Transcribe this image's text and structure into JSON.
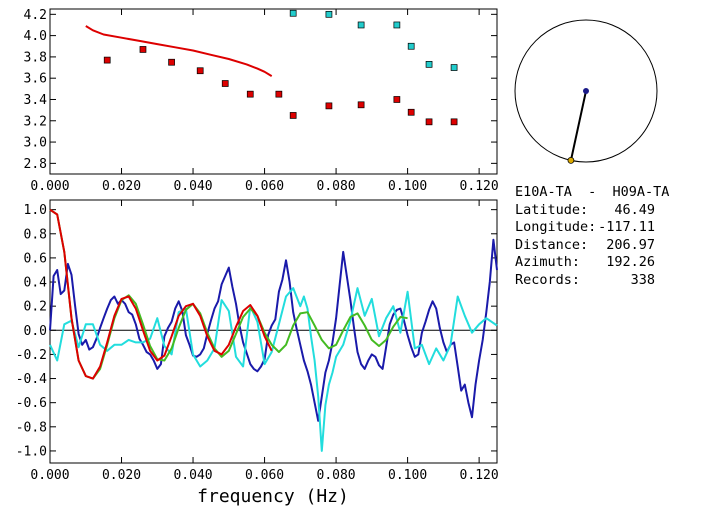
{
  "chart_data": [
    {
      "type": "scatter",
      "xlim": [
        0.0,
        0.125
      ],
      "ylim": [
        2.7,
        4.25
      ],
      "x_ticks": [
        "0.000",
        "0.020",
        "0.040",
        "0.060",
        "0.080",
        "0.100",
        "0.120"
      ],
      "y_ticks": [
        "2.8",
        "3.0",
        "3.2",
        "3.4",
        "3.6",
        "3.8",
        "4.0",
        "4.2"
      ],
      "grid": false,
      "series": [
        {
          "kind": "line",
          "color": "#dd0000",
          "x": [
            0.01,
            0.012,
            0.015,
            0.02,
            0.025,
            0.03,
            0.035,
            0.04,
            0.045,
            0.05,
            0.055,
            0.058,
            0.06,
            0.062
          ],
          "y": [
            4.09,
            4.05,
            4.01,
            3.98,
            3.95,
            3.92,
            3.89,
            3.86,
            3.82,
            3.78,
            3.73,
            3.69,
            3.66,
            3.62
          ]
        },
        {
          "kind": "points",
          "color": "#dd0000",
          "x": [
            0.016,
            0.026,
            0.034,
            0.042,
            0.049,
            0.056,
            0.064,
            0.068,
            0.078,
            0.087,
            0.097,
            0.101,
            0.106,
            0.113
          ],
          "y": [
            3.77,
            3.87,
            3.75,
            3.67,
            3.55,
            3.45,
            3.45,
            3.25,
            3.34,
            3.35,
            3.4,
            3.28,
            3.19,
            3.19
          ]
        },
        {
          "kind": "points",
          "color": "#22cccc",
          "x": [
            0.068,
            0.078,
            0.087,
            0.097,
            0.101,
            0.106,
            0.113
          ],
          "y": [
            4.21,
            4.2,
            4.1,
            4.1,
            3.9,
            3.73,
            3.7
          ]
        }
      ]
    },
    {
      "type": "line",
      "xlim": [
        0.0,
        0.125
      ],
      "ylim": [
        -1.1,
        1.08
      ],
      "xlabel": "frequency (Hz)",
      "x_ticks": [
        "0.000",
        "0.020",
        "0.040",
        "0.060",
        "0.080",
        "0.100",
        "0.120"
      ],
      "y_ticks": [
        "1.0",
        "0.8",
        "0.6",
        "0.4",
        "0.2",
        "0.0",
        "-0.2",
        "-0.4",
        "-0.6",
        "-0.8",
        "-1.0"
      ],
      "grid": false,
      "series": [
        {
          "color": "#1a1aaa",
          "x": [
            0.0,
            0.001,
            0.002,
            0.003,
            0.004,
            0.005,
            0.006,
            0.007,
            0.008,
            0.009,
            0.01,
            0.011,
            0.012,
            0.013,
            0.014,
            0.015,
            0.016,
            0.017,
            0.018,
            0.019,
            0.02,
            0.021,
            0.022,
            0.023,
            0.024,
            0.025,
            0.026,
            0.027,
            0.028,
            0.029,
            0.03,
            0.031,
            0.032,
            0.033,
            0.034,
            0.035,
            0.036,
            0.037,
            0.038,
            0.039,
            0.04,
            0.041,
            0.042,
            0.043,
            0.044,
            0.045,
            0.046,
            0.047,
            0.048,
            0.049,
            0.05,
            0.051,
            0.052,
            0.053,
            0.054,
            0.055,
            0.056,
            0.057,
            0.058,
            0.059,
            0.06,
            0.061,
            0.062,
            0.063,
            0.064,
            0.065,
            0.066,
            0.067,
            0.068,
            0.069,
            0.07,
            0.071,
            0.072,
            0.073,
            0.074,
            0.075,
            0.076,
            0.077,
            0.078,
            0.079,
            0.08,
            0.081,
            0.082,
            0.083,
            0.084,
            0.085,
            0.086,
            0.087,
            0.088,
            0.089,
            0.09,
            0.091,
            0.092,
            0.093,
            0.094,
            0.095,
            0.096,
            0.097,
            0.098,
            0.099,
            0.1,
            0.101,
            0.102,
            0.103,
            0.104,
            0.105,
            0.106,
            0.107,
            0.108,
            0.109,
            0.11,
            0.111,
            0.112,
            0.113,
            0.114,
            0.115,
            0.116,
            0.117,
            0.118,
            0.119,
            0.12,
            0.121,
            0.122,
            0.123,
            0.124,
            0.125
          ],
          "y": [
            0.0,
            0.45,
            0.5,
            0.3,
            0.33,
            0.55,
            0.46,
            0.21,
            -0.03,
            -0.12,
            -0.08,
            -0.16,
            -0.14,
            -0.07,
            0.02,
            0.1,
            0.18,
            0.25,
            0.28,
            0.22,
            0.25,
            0.22,
            0.15,
            0.13,
            0.05,
            -0.07,
            -0.12,
            -0.18,
            -0.2,
            -0.25,
            -0.32,
            -0.28,
            -0.05,
            0.02,
            0.07,
            0.18,
            0.24,
            0.16,
            -0.04,
            -0.12,
            -0.21,
            -0.22,
            -0.2,
            -0.15,
            -0.03,
            0.08,
            0.18,
            0.24,
            0.38,
            0.45,
            0.52,
            0.36,
            0.22,
            0.04,
            -0.1,
            -0.19,
            -0.28,
            -0.32,
            -0.34,
            -0.3,
            -0.24,
            -0.04,
            0.04,
            0.09,
            0.32,
            0.42,
            0.58,
            0.4,
            0.15,
            0.01,
            -0.12,
            -0.25,
            -0.34,
            -0.45,
            -0.6,
            -0.75,
            -0.55,
            -0.35,
            -0.25,
            -0.1,
            0.1,
            0.38,
            0.65,
            0.45,
            0.25,
            0.02,
            -0.18,
            -0.28,
            -0.32,
            -0.25,
            -0.2,
            -0.22,
            -0.29,
            -0.32,
            -0.14,
            0.05,
            0.13,
            0.17,
            0.18,
            0.08,
            -0.04,
            -0.14,
            -0.22,
            -0.2,
            -0.02,
            0.07,
            0.17,
            0.24,
            0.18,
            0.02,
            -0.1,
            -0.18,
            -0.12,
            -0.1,
            -0.3,
            -0.5,
            -0.45,
            -0.6,
            -0.72,
            -0.45,
            -0.25,
            -0.08,
            0.15,
            0.4,
            0.75,
            0.5
          ]
        },
        {
          "color": "#22dddd",
          "x": [
            0.0,
            0.002,
            0.004,
            0.006,
            0.008,
            0.01,
            0.012,
            0.014,
            0.016,
            0.018,
            0.02,
            0.022,
            0.024,
            0.026,
            0.028,
            0.03,
            0.032,
            0.034,
            0.036,
            0.038,
            0.04,
            0.042,
            0.044,
            0.046,
            0.048,
            0.05,
            0.052,
            0.054,
            0.056,
            0.058,
            0.06,
            0.062,
            0.064,
            0.066,
            0.068,
            0.07,
            0.071,
            0.072,
            0.073,
            0.074,
            0.075,
            0.076,
            0.077,
            0.078,
            0.079,
            0.08,
            0.082,
            0.084,
            0.086,
            0.088,
            0.09,
            0.092,
            0.094,
            0.096,
            0.098,
            0.1,
            0.102,
            0.104,
            0.106,
            0.108,
            0.11,
            0.112,
            0.114,
            0.116,
            0.118,
            0.12,
            0.122,
            0.125
          ],
          "y": [
            -0.12,
            -0.25,
            0.05,
            0.08,
            -0.14,
            0.05,
            0.05,
            -0.12,
            -0.17,
            -0.12,
            -0.12,
            -0.08,
            -0.1,
            -0.1,
            -0.07,
            0.1,
            -0.13,
            -0.2,
            0.15,
            0.18,
            -0.2,
            -0.3,
            -0.25,
            -0.15,
            0.25,
            0.16,
            -0.22,
            -0.3,
            0.2,
            0.07,
            -0.28,
            -0.18,
            0.05,
            0.28,
            0.35,
            0.2,
            0.28,
            0.18,
            -0.05,
            -0.25,
            -0.55,
            -1.0,
            -0.62,
            -0.45,
            -0.35,
            -0.22,
            -0.12,
            0.08,
            0.35,
            0.12,
            0.26,
            -0.05,
            0.1,
            0.2,
            -0.02,
            0.32,
            -0.15,
            -0.12,
            -0.28,
            -0.15,
            -0.25,
            -0.12,
            0.28,
            0.12,
            -0.02,
            0.05,
            0.1,
            0.04
          ]
        },
        {
          "color": "#44bb22",
          "x": [
            0.0,
            0.002,
            0.004,
            0.006,
            0.008,
            0.01,
            0.012,
            0.014,
            0.016,
            0.018,
            0.02,
            0.022,
            0.024,
            0.026,
            0.028,
            0.03,
            0.032,
            0.034,
            0.036,
            0.038,
            0.04,
            0.042,
            0.044,
            0.046,
            0.048,
            0.05,
            0.052,
            0.054,
            0.056,
            0.058,
            0.06,
            0.062,
            0.064,
            0.066,
            0.068,
            0.07,
            0.072,
            0.074,
            0.076,
            0.078,
            0.08,
            0.082,
            0.084,
            0.086,
            0.088,
            0.09,
            0.092,
            0.094,
            0.096,
            0.098,
            0.1
          ],
          "y": [
            1.0,
            0.96,
            0.65,
            0.1,
            -0.25,
            -0.38,
            -0.4,
            -0.32,
            -0.12,
            0.1,
            0.25,
            0.29,
            0.22,
            0.05,
            -0.13,
            -0.24,
            -0.25,
            -0.15,
            0.02,
            0.17,
            0.22,
            0.14,
            -0.02,
            -0.15,
            -0.22,
            -0.17,
            -0.03,
            0.11,
            0.18,
            0.12,
            -0.02,
            -0.12,
            -0.18,
            -0.12,
            0.04,
            0.14,
            0.15,
            0.04,
            -0.08,
            -0.15,
            -0.12,
            0.0,
            0.11,
            0.14,
            0.04,
            -0.08,
            -0.13,
            -0.08,
            0.03,
            0.11,
            0.1
          ]
        },
        {
          "color": "#dd0000",
          "x": [
            0.0,
            0.002,
            0.004,
            0.006,
            0.008,
            0.01,
            0.012,
            0.014,
            0.016,
            0.018,
            0.02,
            0.022,
            0.024,
            0.026,
            0.028,
            0.03,
            0.032,
            0.034,
            0.036,
            0.038,
            0.04,
            0.042,
            0.044,
            0.046,
            0.048,
            0.05,
            0.052,
            0.054,
            0.056,
            0.058,
            0.06,
            0.062
          ],
          "y": [
            1.0,
            0.96,
            0.65,
            0.1,
            -0.25,
            -0.38,
            -0.4,
            -0.3,
            -0.1,
            0.12,
            0.26,
            0.28,
            0.18,
            0.0,
            -0.17,
            -0.25,
            -0.21,
            -0.05,
            0.12,
            0.2,
            0.22,
            0.12,
            -0.05,
            -0.17,
            -0.2,
            -0.12,
            0.03,
            0.16,
            0.21,
            0.12,
            -0.05,
            -0.17
          ]
        }
      ]
    }
  ],
  "map": {
    "ring_color": "#000000",
    "station_a_color": "#1a1a88",
    "station_b_color": "#ddaa00",
    "azimuth_deg": 192.26
  },
  "info": {
    "title": "E10A-TA  -  H09A-TA",
    "rows": [
      {
        "label": "Latitude:",
        "value": "46.49"
      },
      {
        "label": "Longitude:",
        "value": "-117.11"
      },
      {
        "label": "Distance:",
        "value": "206.97"
      },
      {
        "label": "Azimuth:",
        "value": "192.26"
      },
      {
        "label": "Records:",
        "value": "338"
      }
    ]
  }
}
